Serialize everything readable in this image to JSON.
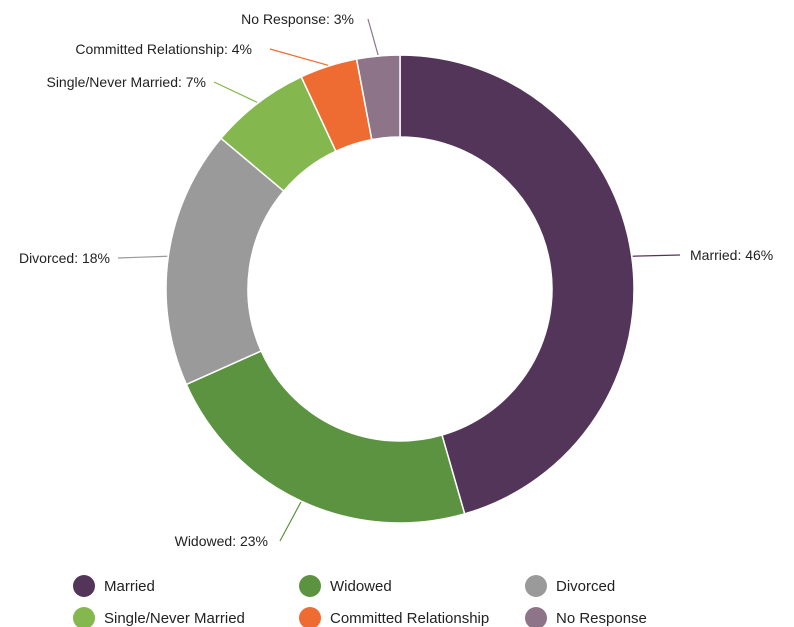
{
  "chart_data": {
    "type": "pie",
    "variant": "donut",
    "unit": "%",
    "slices": [
      {
        "name": "Married",
        "value": 46,
        "label": "Married: 46%",
        "color": "#533559"
      },
      {
        "name": "Widowed",
        "value": 23,
        "label": "Widowed: 23%",
        "color": "#5b9341"
      },
      {
        "name": "Divorced",
        "value": 18,
        "label": "Divorced: 18%",
        "color": "#9a9a9a"
      },
      {
        "name": "Single/Never Married",
        "value": 7,
        "label": "Single/Never Married: 7%",
        "color": "#84b84e"
      },
      {
        "name": "Committed Relationship",
        "value": 4,
        "label": "Committed Relationship: 4%",
        "color": "#ee6c31"
      },
      {
        "name": "No Response",
        "value": 3,
        "label": "No Response: 3%",
        "color": "#8d7489"
      }
    ],
    "legend": {
      "placement": "bottom",
      "entries": [
        "Married",
        "Widowed",
        "Divorced",
        "Single/Never Married",
        "Committed Relationship",
        "No Response"
      ]
    }
  }
}
